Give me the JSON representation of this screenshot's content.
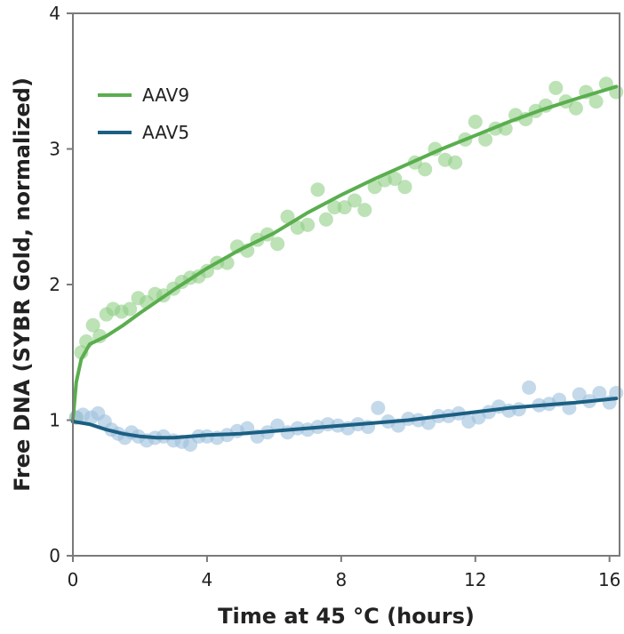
{
  "chart_data": {
    "type": "scatter",
    "title": "",
    "xlabel": "Time at 45 °C (hours)",
    "ylabel": "Free DNA (SYBR Gold, normalized)",
    "xlim": [
      0,
      16.3
    ],
    "ylim": [
      0,
      4
    ],
    "xticks": [
      0,
      4,
      8,
      12,
      16
    ],
    "yticks": [
      0,
      1,
      2,
      3,
      4
    ],
    "grid": false,
    "legend_position": "top-left",
    "series": [
      {
        "name": "AAV9",
        "line_color": "#5aae4e",
        "point_color": "#8fce85",
        "points": [
          [
            0.1,
            1.02
          ],
          [
            0.25,
            1.5
          ],
          [
            0.4,
            1.58
          ],
          [
            0.6,
            1.7
          ],
          [
            0.8,
            1.62
          ],
          [
            1.0,
            1.78
          ],
          [
            1.2,
            1.82
          ],
          [
            1.45,
            1.8
          ],
          [
            1.7,
            1.82
          ],
          [
            1.95,
            1.9
          ],
          [
            2.2,
            1.87
          ],
          [
            2.45,
            1.93
          ],
          [
            2.7,
            1.92
          ],
          [
            3.0,
            1.97
          ],
          [
            3.25,
            2.02
          ],
          [
            3.5,
            2.05
          ],
          [
            3.75,
            2.06
          ],
          [
            4.0,
            2.1
          ],
          [
            4.3,
            2.16
          ],
          [
            4.6,
            2.16
          ],
          [
            4.9,
            2.28
          ],
          [
            5.2,
            2.25
          ],
          [
            5.5,
            2.33
          ],
          [
            5.8,
            2.37
          ],
          [
            6.1,
            2.3
          ],
          [
            6.4,
            2.5
          ],
          [
            6.7,
            2.42
          ],
          [
            7.0,
            2.44
          ],
          [
            7.3,
            2.7
          ],
          [
            7.55,
            2.48
          ],
          [
            7.8,
            2.57
          ],
          [
            8.1,
            2.57
          ],
          [
            8.4,
            2.62
          ],
          [
            8.7,
            2.55
          ],
          [
            9.0,
            2.72
          ],
          [
            9.3,
            2.77
          ],
          [
            9.6,
            2.78
          ],
          [
            9.9,
            2.72
          ],
          [
            10.2,
            2.9
          ],
          [
            10.5,
            2.85
          ],
          [
            10.8,
            3.0
          ],
          [
            11.1,
            2.92
          ],
          [
            11.4,
            2.9
          ],
          [
            11.7,
            3.07
          ],
          [
            12.0,
            3.2
          ],
          [
            12.3,
            3.07
          ],
          [
            12.6,
            3.15
          ],
          [
            12.9,
            3.15
          ],
          [
            13.2,
            3.25
          ],
          [
            13.5,
            3.22
          ],
          [
            13.8,
            3.28
          ],
          [
            14.1,
            3.32
          ],
          [
            14.4,
            3.45
          ],
          [
            14.7,
            3.35
          ],
          [
            15.0,
            3.3
          ],
          [
            15.3,
            3.42
          ],
          [
            15.6,
            3.35
          ],
          [
            15.9,
            3.48
          ],
          [
            16.2,
            3.42
          ]
        ],
        "fit": [
          [
            0,
            1.0
          ],
          [
            0.1,
            1.28
          ],
          [
            0.25,
            1.45
          ],
          [
            0.5,
            1.56
          ],
          [
            1.0,
            1.62
          ],
          [
            1.5,
            1.7
          ],
          [
            2.0,
            1.79
          ],
          [
            3.0,
            1.96
          ],
          [
            4.0,
            2.12
          ],
          [
            5.0,
            2.26
          ],
          [
            6.0,
            2.38
          ],
          [
            7.0,
            2.53
          ],
          [
            8.0,
            2.66
          ],
          [
            9.0,
            2.78
          ],
          [
            10.0,
            2.89
          ],
          [
            11.0,
            3.0
          ],
          [
            12.0,
            3.1
          ],
          [
            13.0,
            3.2
          ],
          [
            14.0,
            3.29
          ],
          [
            15.0,
            3.37
          ],
          [
            16.2,
            3.46
          ]
        ]
      },
      {
        "name": "AAV5",
        "line_color": "#1b5f82",
        "point_color": "#9cc0dc",
        "points": [
          [
            0.1,
            1.02
          ],
          [
            0.3,
            1.04
          ],
          [
            0.55,
            1.02
          ],
          [
            0.75,
            1.05
          ],
          [
            0.95,
            0.99
          ],
          [
            1.15,
            0.93
          ],
          [
            1.35,
            0.9
          ],
          [
            1.55,
            0.87
          ],
          [
            1.75,
            0.91
          ],
          [
            1.95,
            0.88
          ],
          [
            2.2,
            0.85
          ],
          [
            2.45,
            0.87
          ],
          [
            2.7,
            0.88
          ],
          [
            3.0,
            0.85
          ],
          [
            3.25,
            0.84
          ],
          [
            3.5,
            0.82
          ],
          [
            3.75,
            0.88
          ],
          [
            4.0,
            0.88
          ],
          [
            4.3,
            0.87
          ],
          [
            4.6,
            0.89
          ],
          [
            4.9,
            0.92
          ],
          [
            5.2,
            0.94
          ],
          [
            5.5,
            0.88
          ],
          [
            5.8,
            0.91
          ],
          [
            6.1,
            0.96
          ],
          [
            6.4,
            0.91
          ],
          [
            6.7,
            0.94
          ],
          [
            7.0,
            0.93
          ],
          [
            7.3,
            0.95
          ],
          [
            7.6,
            0.97
          ],
          [
            7.9,
            0.96
          ],
          [
            8.2,
            0.94
          ],
          [
            8.5,
            0.97
          ],
          [
            8.8,
            0.95
          ],
          [
            9.1,
            1.09
          ],
          [
            9.4,
            0.99
          ],
          [
            9.7,
            0.96
          ],
          [
            10.0,
            1.01
          ],
          [
            10.3,
            1.0
          ],
          [
            10.6,
            0.98
          ],
          [
            10.9,
            1.03
          ],
          [
            11.2,
            1.03
          ],
          [
            11.5,
            1.05
          ],
          [
            11.8,
            0.99
          ],
          [
            12.1,
            1.02
          ],
          [
            12.4,
            1.06
          ],
          [
            12.7,
            1.1
          ],
          [
            13.0,
            1.07
          ],
          [
            13.3,
            1.08
          ],
          [
            13.6,
            1.24
          ],
          [
            13.9,
            1.11
          ],
          [
            14.2,
            1.12
          ],
          [
            14.5,
            1.15
          ],
          [
            14.8,
            1.09
          ],
          [
            15.1,
            1.19
          ],
          [
            15.4,
            1.14
          ],
          [
            15.7,
            1.2
          ],
          [
            16.0,
            1.13
          ],
          [
            16.2,
            1.2
          ]
        ],
        "fit": [
          [
            0,
            0.99
          ],
          [
            0.5,
            0.97
          ],
          [
            1.0,
            0.93
          ],
          [
            1.5,
            0.9
          ],
          [
            2.0,
            0.88
          ],
          [
            2.5,
            0.87
          ],
          [
            3.0,
            0.87
          ],
          [
            3.5,
            0.88
          ],
          [
            4.0,
            0.89
          ],
          [
            5.0,
            0.9
          ],
          [
            6.0,
            0.92
          ],
          [
            7.0,
            0.94
          ],
          [
            8.0,
            0.96
          ],
          [
            9.0,
            0.98
          ],
          [
            10.0,
            1.0
          ],
          [
            11.0,
            1.03
          ],
          [
            12.0,
            1.06
          ],
          [
            13.0,
            1.09
          ],
          [
            14.0,
            1.11
          ],
          [
            15.0,
            1.13
          ],
          [
            16.2,
            1.16
          ]
        ]
      }
    ]
  }
}
